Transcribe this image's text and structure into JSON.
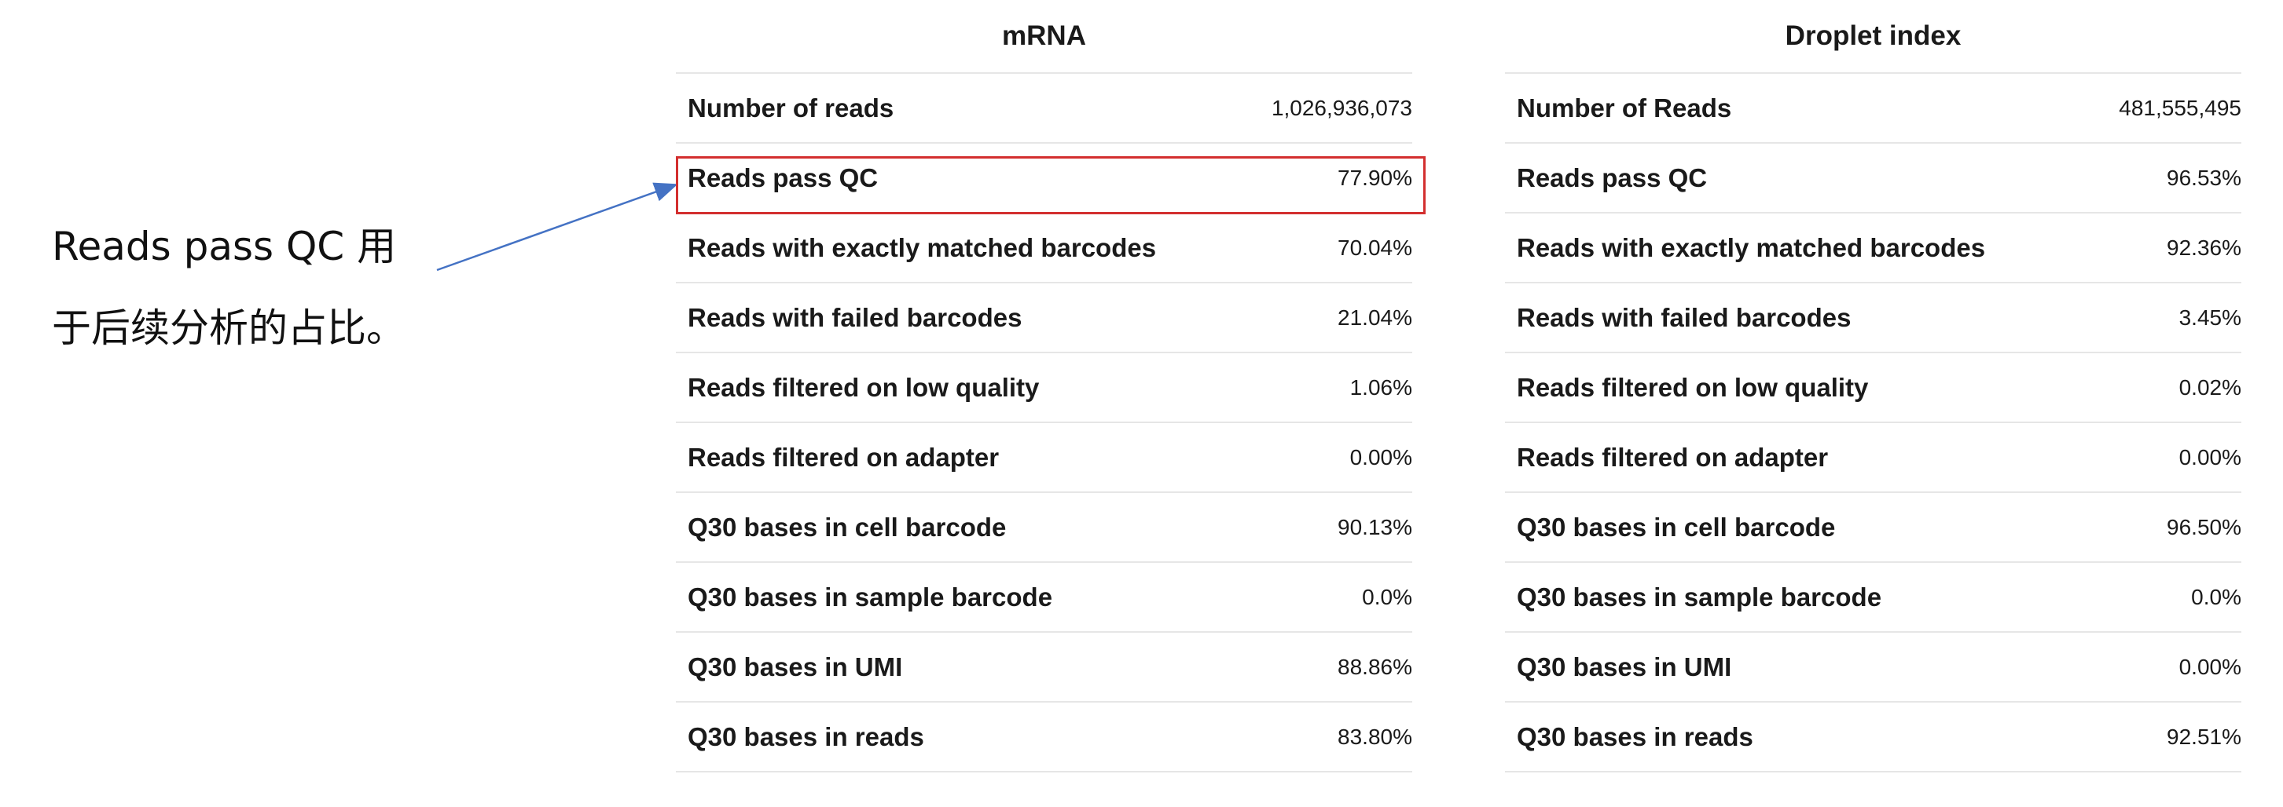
{
  "annotation": {
    "line1": "Reads pass QC 用",
    "line2": "于后续分析的占比。"
  },
  "colors": {
    "highlight": "#d32f2f",
    "arrow": "#4472c4"
  },
  "tables": {
    "mrna": {
      "title": "mRNA",
      "rows": [
        {
          "label": "Number of reads",
          "value": "1,026,936,073"
        },
        {
          "label": "Reads pass QC",
          "value": "77.90%"
        },
        {
          "label": "Reads with exactly matched barcodes",
          "value": "70.04%"
        },
        {
          "label": "Reads with failed barcodes",
          "value": "21.04%"
        },
        {
          "label": "Reads filtered on low quality",
          "value": "1.06%"
        },
        {
          "label": "Reads filtered on adapter",
          "value": "0.00%"
        },
        {
          "label": "Q30 bases in cell barcode",
          "value": "90.13%"
        },
        {
          "label": "Q30 bases in sample barcode",
          "value": "0.0%"
        },
        {
          "label": "Q30 bases in UMI",
          "value": "88.86%"
        },
        {
          "label": "Q30 bases in reads",
          "value": "83.80%"
        }
      ]
    },
    "droplet": {
      "title": "Droplet index",
      "rows": [
        {
          "label": "Number of Reads",
          "value": "481,555,495"
        },
        {
          "label": "Reads pass QC",
          "value": "96.53%"
        },
        {
          "label": "Reads with exactly matched barcodes",
          "value": "92.36%"
        },
        {
          "label": "Reads with failed barcodes",
          "value": "3.45%"
        },
        {
          "label": "Reads filtered on low quality",
          "value": "0.02%"
        },
        {
          "label": "Reads filtered on adapter",
          "value": "0.00%"
        },
        {
          "label": "Q30 bases in cell barcode",
          "value": "96.50%"
        },
        {
          "label": "Q30 bases in sample barcode",
          "value": "0.0%"
        },
        {
          "label": "Q30 bases in UMI",
          "value": "0.00%"
        },
        {
          "label": "Q30 bases in reads",
          "value": "92.51%"
        }
      ]
    }
  }
}
